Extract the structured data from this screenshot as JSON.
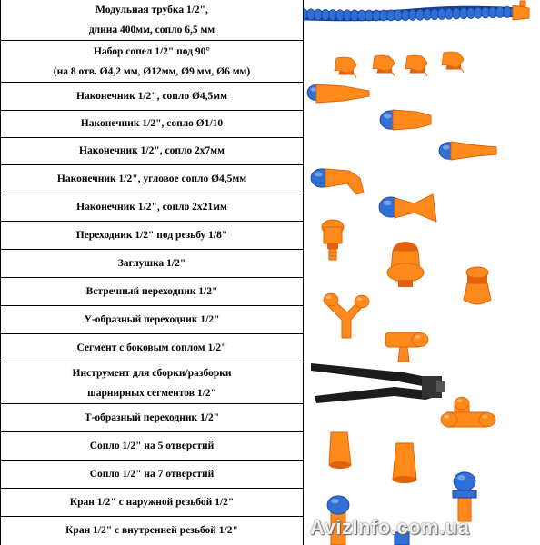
{
  "rows": [
    {
      "lines": [
        "Модульная трубка 1/2\",",
        "длина 400мм, сопло 6,5 мм"
      ],
      "icon": "modular-hose-icon"
    },
    {
      "lines": [
        "Набор сопел 1/2\" под 90°",
        "(на 8 отв. Ø4,2 мм, Ø12мм, Ø9 мм, Ø6 мм)"
      ],
      "icon": "nozzle-set-90-icon"
    },
    {
      "lines": [
        "Наконечник 1/2\", сопло Ø4,5мм"
      ],
      "icon": "tip-nozzle-4-5-icon"
    },
    {
      "lines": [
        "Наконечник 1/2\", сопло Ø1/10"
      ],
      "icon": "tip-nozzle-1-10-icon"
    },
    {
      "lines": [
        "Наконечник 1/2\", сопло 2х7мм"
      ],
      "icon": "tip-nozzle-2x7-icon"
    },
    {
      "lines": [
        "Наконечник 1/2\", угловое сопло Ø4,5мм"
      ],
      "icon": "angled-tip-nozzle-icon"
    },
    {
      "lines": [
        "Наконечник 1/2\", сопло 2х21мм"
      ],
      "icon": "fan-tip-nozzle-icon"
    },
    {
      "lines": [
        "Переходник 1/2\" под резьбу 1/8\""
      ],
      "icon": "thread-adapter-icon"
    },
    {
      "lines": [
        "Заглушка 1/2\""
      ],
      "icon": "end-plug-icon"
    },
    {
      "lines": [
        "Встречный переходник 1/2\""
      ],
      "icon": "counter-adapter-icon"
    },
    {
      "lines": [
        "У-образный переходник 1/2\""
      ],
      "icon": "y-adapter-icon"
    },
    {
      "lines": [
        "Сегмент с боковым соплом 1/2\""
      ],
      "icon": "side-nozzle-segment-icon"
    },
    {
      "lines": [
        "Инструмент для сборки/разборки",
        "шарнирных сегментов 1/2\""
      ],
      "icon": "assembly-pliers-icon"
    },
    {
      "lines": [
        "Т-образный переходник 1/2\""
      ],
      "icon": "t-adapter-icon"
    },
    {
      "lines": [
        "Сопло 1/2\" на 5 отверстий"
      ],
      "icon": "five-hole-nozzle-icon"
    },
    {
      "lines": [
        "Сопло 1/2\" на 7 отверстий"
      ],
      "icon": "seven-hole-nozzle-icon"
    },
    {
      "lines": [
        "Кран 1/2\" с наружной резьбой 1/2\""
      ],
      "icon": "male-thread-valve-icon"
    },
    {
      "lines": [
        "Кран 1/2\" с внутренней резьбой 1/2\""
      ],
      "icon": "female-thread-valve-icon"
    }
  ],
  "watermark": "AvizInfo.com.ua",
  "colors": {
    "orange": "#ff8a1c",
    "orange_dark": "#e0620a",
    "blue": "#2f6fd6",
    "blue_dark": "#1a3f9a",
    "tool_black": "#1c1c1c"
  }
}
